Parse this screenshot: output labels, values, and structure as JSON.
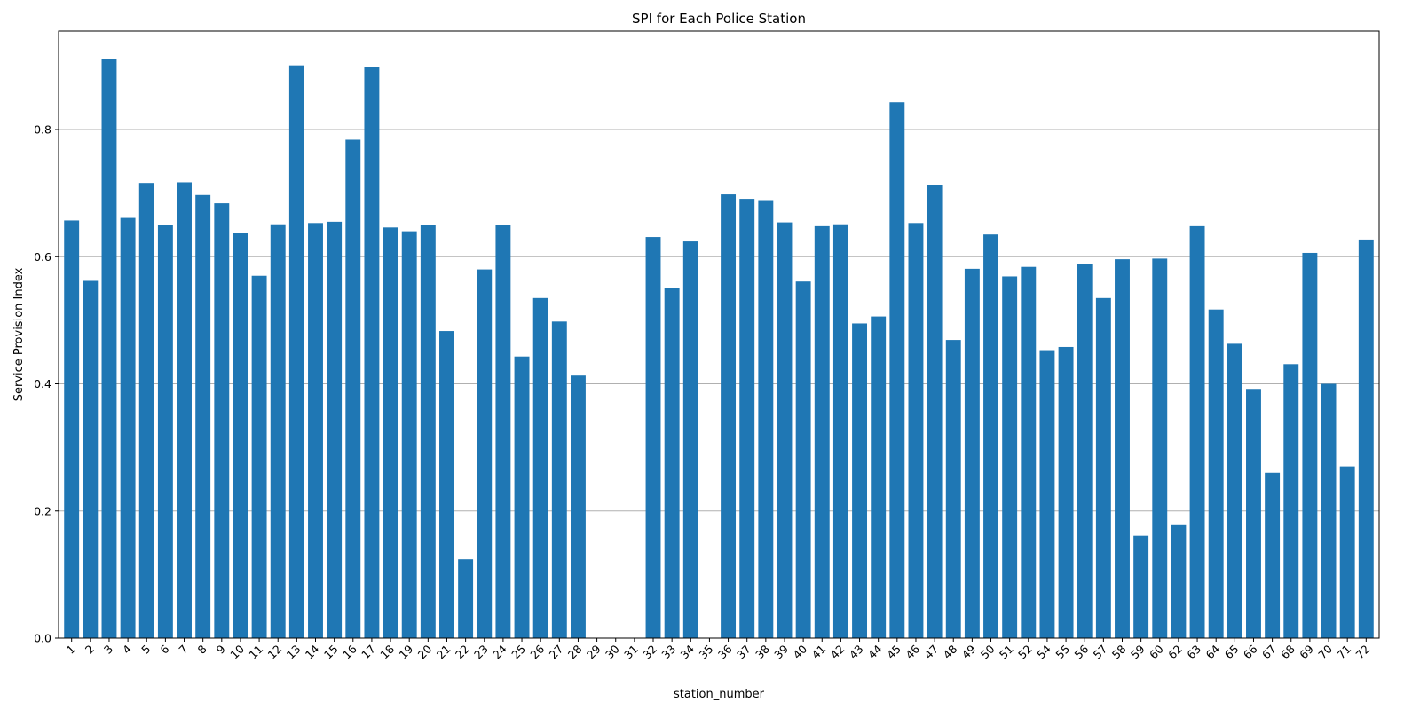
{
  "chart_data": {
    "type": "bar",
    "title": "SPI for Each Police Station",
    "xlabel": "station_number",
    "ylabel": "Service Provision Index",
    "ylim": [
      0,
      0.955
    ],
    "yticks": [
      "0.0",
      "0.2",
      "0.4",
      "0.6",
      "0.8"
    ],
    "ytick_values": [
      0,
      0.2,
      0.4,
      0.6,
      0.8
    ],
    "grid": "y-axis horizontal lines",
    "bar_color": "#1f77b4",
    "categories": [
      "1",
      "2",
      "3",
      "4",
      "5",
      "6",
      "7",
      "8",
      "9",
      "10",
      "11",
      "12",
      "13",
      "14",
      "15",
      "16",
      "17",
      "18",
      "19",
      "20",
      "21",
      "22",
      "23",
      "24",
      "25",
      "26",
      "27",
      "28",
      "29",
      "30",
      "31",
      "32",
      "33",
      "34",
      "35",
      "36",
      "37",
      "38",
      "39",
      "40",
      "41",
      "42",
      "43",
      "44",
      "45",
      "46",
      "47",
      "48",
      "49",
      "50",
      "51",
      "52",
      "54",
      "55",
      "56",
      "57",
      "58",
      "59",
      "60",
      "62",
      "63",
      "64",
      "65",
      "66",
      "67",
      "68",
      "69",
      "70",
      "71",
      "72"
    ],
    "values": [
      0.657,
      0.562,
      0.911,
      0.661,
      0.716,
      0.65,
      0.717,
      0.697,
      0.684,
      0.638,
      0.57,
      0.651,
      0.901,
      0.653,
      0.655,
      0.784,
      0.898,
      0.646,
      0.64,
      0.65,
      0.483,
      0.124,
      0.58,
      0.65,
      0.443,
      0.535,
      0.498,
      0.413,
      0,
      0,
      0,
      0.631,
      0.551,
      0.624,
      0,
      0.698,
      0.691,
      0.689,
      0.654,
      0.561,
      0.648,
      0.651,
      0.495,
      0.506,
      0.843,
      0.653,
      0.713,
      0.469,
      0.581,
      0.635,
      0.569,
      0.584,
      0.453,
      0.458,
      0.588,
      0.535,
      0.596,
      0.161,
      0.597,
      0.179,
      0.648,
      0.517,
      0.463,
      0.392,
      0.26,
      0.431,
      0.606,
      0.4,
      0.27,
      0.627
    ]
  }
}
